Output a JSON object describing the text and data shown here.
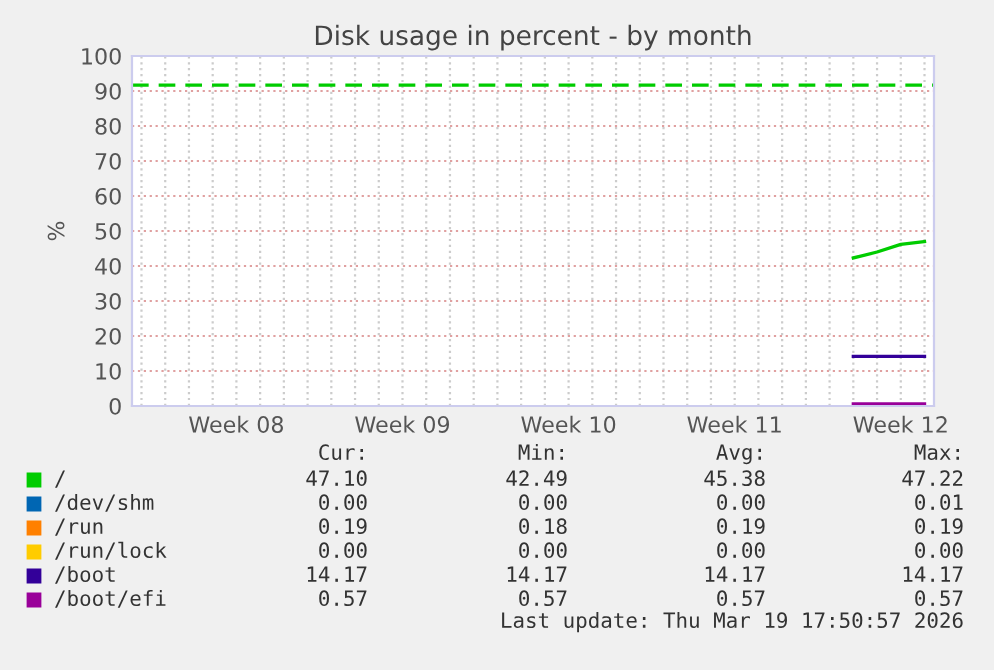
{
  "chart_data": {
    "type": "line",
    "title": "Disk usage in percent - by month",
    "ylabel": "%",
    "categories": [
      null,
      null,
      null,
      null,
      "Week 08",
      null,
      null,
      null,
      null,
      null,
      null,
      "Week 09",
      null,
      null,
      null,
      null,
      null,
      null,
      "Week 10",
      null,
      null,
      null,
      null,
      null,
      null,
      "Week 11",
      null,
      null,
      null,
      null,
      null,
      null,
      "Week 12",
      null
    ],
    "ylim": [
      0,
      100
    ],
    "yticks": [
      0,
      10,
      20,
      30,
      40,
      50,
      60,
      70,
      80,
      90,
      100
    ],
    "grid": true,
    "legend": "bottom",
    "marker": "none",
    "line_style": "solid",
    "series": [
      {
        "name": "/",
        "color": "#00cc00",
        "values": [
          null,
          null,
          null,
          null,
          null,
          null,
          null,
          null,
          null,
          null,
          null,
          null,
          null,
          null,
          null,
          null,
          null,
          null,
          null,
          null,
          null,
          null,
          null,
          null,
          null,
          null,
          null,
          null,
          null,
          null,
          42.3,
          44,
          46.2,
          47
        ]
      },
      {
        "name": "/dev/shm",
        "color": "#0066b3",
        "values": [
          null,
          null,
          null,
          null,
          null,
          null,
          null,
          null,
          null,
          null,
          null,
          null,
          null,
          null,
          null,
          null,
          null,
          null,
          null,
          null,
          null,
          null,
          null,
          null,
          null,
          null,
          null,
          null,
          null,
          null,
          null,
          null,
          null,
          null
        ]
      },
      {
        "name": "/run",
        "color": "#ff8000",
        "values": [
          null,
          null,
          null,
          null,
          null,
          null,
          null,
          null,
          null,
          null,
          null,
          null,
          null,
          null,
          null,
          null,
          null,
          null,
          null,
          null,
          null,
          null,
          null,
          null,
          null,
          null,
          null,
          null,
          null,
          null,
          null,
          null,
          null,
          null
        ]
      },
      {
        "name": "/run/lock",
        "color": "#ffcc00",
        "values": [
          null,
          null,
          null,
          null,
          null,
          null,
          null,
          null,
          null,
          null,
          null,
          null,
          null,
          null,
          null,
          null,
          null,
          null,
          null,
          null,
          null,
          null,
          null,
          null,
          null,
          null,
          null,
          null,
          null,
          null,
          null,
          null,
          null,
          null
        ]
      },
      {
        "name": "/boot",
        "color": "#330099",
        "values": [
          null,
          null,
          null,
          null,
          null,
          null,
          null,
          null,
          null,
          null,
          null,
          null,
          null,
          null,
          null,
          null,
          null,
          null,
          null,
          null,
          null,
          null,
          null,
          null,
          null,
          null,
          null,
          null,
          null,
          null,
          14.2,
          14.2,
          14.2,
          14.2
        ]
      },
      {
        "name": "/boot/efi",
        "color": "#990099",
        "values": [
          null,
          null,
          null,
          null,
          null,
          null,
          null,
          null,
          null,
          null,
          null,
          null,
          null,
          null,
          null,
          null,
          null,
          null,
          null,
          null,
          null,
          null,
          null,
          null,
          null,
          null,
          null,
          null,
          null,
          null,
          0.6,
          0.6,
          0.6,
          0.6
        ]
      }
    ],
    "ref_lines": [
      {
        "axis": "y",
        "value": 91.7,
        "label": null,
        "color": "#00cc00",
        "line_style": "dashed"
      }
    ],
    "annotations": [
      "Cur:",
      "Min:",
      "Avg:",
      "Max:",
      "47.10",
      "42.49",
      "45.38",
      "47.22",
      "0.00",
      "0.00",
      "0.00",
      "0.01",
      "0.19",
      "0.18",
      "0.19",
      "0.19",
      "0.00",
      "0.00",
      "0.00",
      "0.00",
      "14.17",
      "14.17",
      "14.17",
      "14.17",
      "0.57",
      "0.57",
      "0.57",
      "0.57",
      "Last update: Thu Mar 19 17:50:57 2026"
    ]
  }
}
